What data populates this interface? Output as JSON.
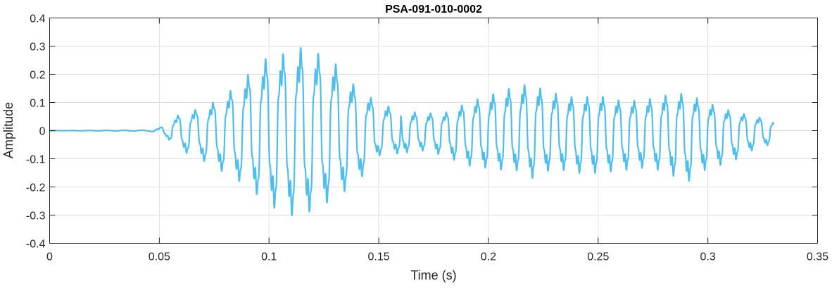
{
  "chart_data": {
    "type": "line",
    "title": "PSA-091-010-0002",
    "xlabel": "Time (s)",
    "ylabel": "Amplitude",
    "xlim": [
      0,
      0.35
    ],
    "ylim": [
      -0.4,
      0.4
    ],
    "grid": true,
    "x_ticks": [
      0,
      0.05,
      0.1,
      0.15,
      0.2,
      0.25,
      0.3,
      0.35
    ],
    "x_tick_labels": [
      "0",
      "0.05",
      "0.1",
      "0.15",
      "0.2",
      "0.25",
      "0.3",
      "0.35"
    ],
    "y_ticks": [
      -0.4,
      -0.3,
      -0.2,
      -0.1,
      0,
      0.1,
      0.2,
      0.3,
      0.4
    ],
    "y_tick_labels": [
      "-0.4",
      "-0.3",
      "-0.2",
      "-0.1",
      "0",
      "0.1",
      "0.2",
      "0.3",
      "0.4"
    ],
    "series": [
      {
        "color": "#4DBEEE",
        "x_start": 0,
        "x_end": 0.33,
        "envelope": {
          "t": [
            0,
            0.045,
            0.05,
            0.055,
            0.06,
            0.07,
            0.08,
            0.09,
            0.1,
            0.11,
            0.115,
            0.12,
            0.13,
            0.14,
            0.15,
            0.16,
            0.17,
            0.18,
            0.19,
            0.2,
            0.21,
            0.215,
            0.22,
            0.23,
            0.24,
            0.25,
            0.26,
            0.27,
            0.28,
            0.29,
            0.3,
            0.31,
            0.32,
            0.33
          ],
          "upper": [
            0,
            0.002,
            0.01,
            0.04,
            0.07,
            0.09,
            0.14,
            0.22,
            0.3,
            0.31,
            0.335,
            0.32,
            0.27,
            0.17,
            0.11,
            0.08,
            0.07,
            0.07,
            0.11,
            0.14,
            0.17,
            0.185,
            0.18,
            0.15,
            0.13,
            0.14,
            0.12,
            0.12,
            0.14,
            0.15,
            0.11,
            0.08,
            0.06,
            0.04
          ],
          "lower": [
            0,
            -0.002,
            -0.01,
            -0.04,
            -0.08,
            -0.12,
            -0.17,
            -0.22,
            -0.3,
            -0.34,
            -0.335,
            -0.32,
            -0.27,
            -0.21,
            -0.1,
            -0.09,
            -0.08,
            -0.1,
            -0.14,
            -0.15,
            -0.16,
            -0.16,
            -0.19,
            -0.15,
            -0.17,
            -0.17,
            -0.16,
            -0.15,
            -0.16,
            -0.21,
            -0.15,
            -0.13,
            -0.08,
            -0.05
          ]
        }
      }
    ]
  }
}
